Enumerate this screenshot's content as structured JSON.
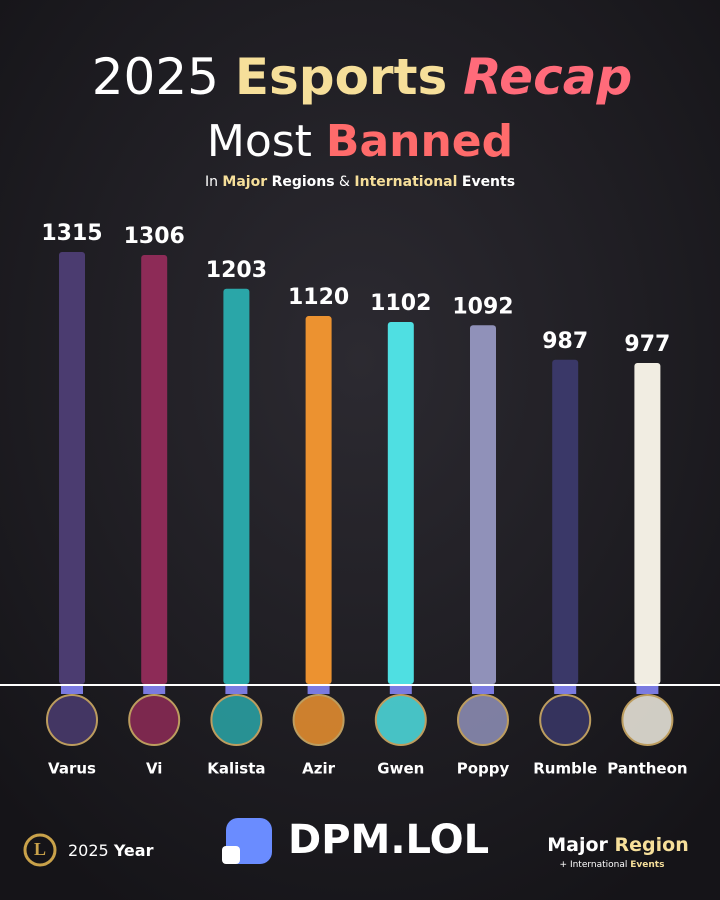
{
  "chart_data": {
    "type": "bar",
    "title_parts": [
      "2025",
      "Esports",
      "Recap"
    ],
    "subtitle_parts": [
      "Most",
      "Banned"
    ],
    "caption_parts": [
      "In",
      "Major",
      "Regions",
      "&",
      "International",
      "Events"
    ],
    "categories": [
      "Varus",
      "Vi",
      "Kalista",
      "Azir",
      "Gwen",
      "Poppy",
      "Rumble",
      "Pantheon"
    ],
    "values": [
      1315,
      1306,
      1203,
      1120,
      1102,
      1092,
      987,
      977
    ],
    "colors": [
      "#4b3c70",
      "#8d2b57",
      "#2aa6a8",
      "#ec9230",
      "#4fdfe2",
      "#9091b9",
      "#3a3868",
      "#f1ede2"
    ]
  },
  "footer": {
    "year_parts": [
      "2025",
      "Year"
    ],
    "brand": "DPM.LOL",
    "region_parts": [
      "Major",
      "Region"
    ],
    "region_note_parts": [
      "+ International",
      "Events"
    ]
  }
}
